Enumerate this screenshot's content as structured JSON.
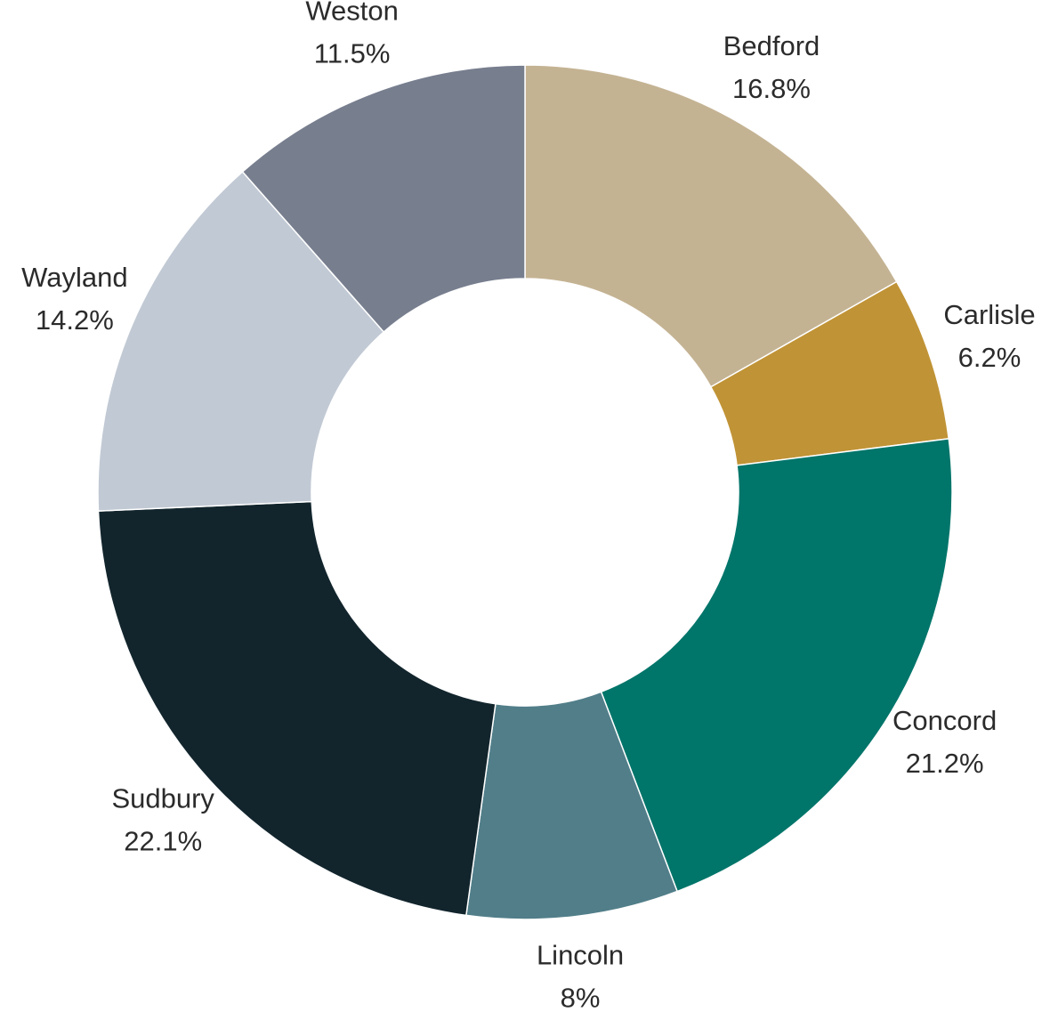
{
  "chart_data": {
    "type": "pie",
    "variant": "donut",
    "start_angle_deg": 0,
    "direction": "clockwise",
    "slices": [
      {
        "label": "Bedford",
        "value": 16.8,
        "value_label": "16.8%",
        "color": "#c4b393"
      },
      {
        "label": "Carlisle",
        "value": 6.2,
        "value_label": "6.2%",
        "color": "#c09336"
      },
      {
        "label": "Concord",
        "value": 21.2,
        "value_label": "21.2%",
        "color": "#00756a"
      },
      {
        "label": "Lincoln",
        "value": 8,
        "value_label": "8%",
        "color": "#517e89"
      },
      {
        "label": "Sudbury",
        "value": 22.1,
        "value_label": "22.1%",
        "color": "#12252d"
      },
      {
        "label": "Wayland",
        "value": 14.2,
        "value_label": "14.2%",
        "color": "#c1c9d4"
      },
      {
        "label": "Weston",
        "value": 11.5,
        "value_label": "11.5%",
        "color": "#777e8e"
      }
    ]
  }
}
